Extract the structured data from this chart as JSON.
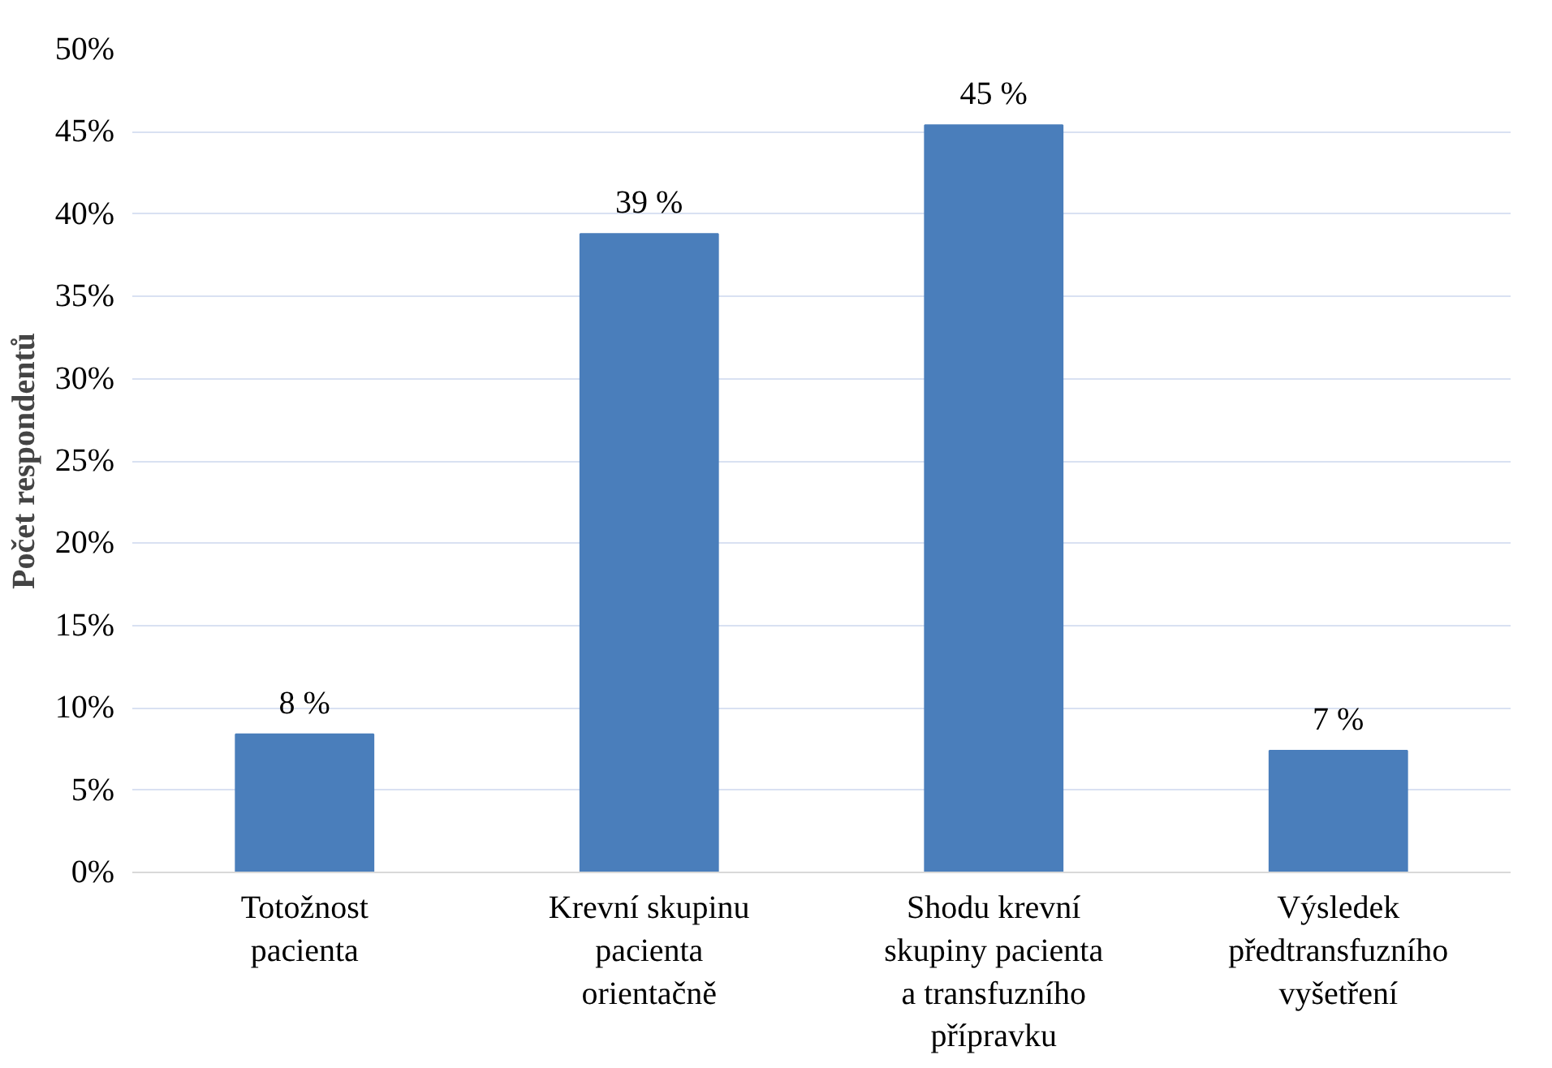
{
  "chart_data": {
    "type": "bar",
    "ylabel": "Počet respondentů",
    "categories": [
      "Totožnost pacienta",
      "Krevní skupinu pacienta orientačně",
      "Shodu krevní skupiny pacienta a transfuzního přípravku",
      "Výsledek předtransfuzního vyšetření"
    ],
    "values": [
      8.4,
      38.8,
      45.4,
      7.4
    ],
    "value_labels": [
      "8 %",
      "39 %",
      "45 %",
      "7 %"
    ],
    "color": "#4a7ebb",
    "ylim": [
      0,
      50
    ],
    "yticks": [
      {
        "value": 0,
        "label": "0%"
      },
      {
        "value": 5,
        "label": "5%"
      },
      {
        "value": 10,
        "label": "10%"
      },
      {
        "value": 15,
        "label": "15%"
      },
      {
        "value": 20,
        "label": "20%"
      },
      {
        "value": 25,
        "label": "25%"
      },
      {
        "value": 30,
        "label": "30%"
      },
      {
        "value": 35,
        "label": "35%"
      },
      {
        "value": 40,
        "label": "40%"
      },
      {
        "value": 45,
        "label": "45%"
      },
      {
        "value": 50,
        "label": "50%"
      }
    ],
    "grid": "y"
  }
}
